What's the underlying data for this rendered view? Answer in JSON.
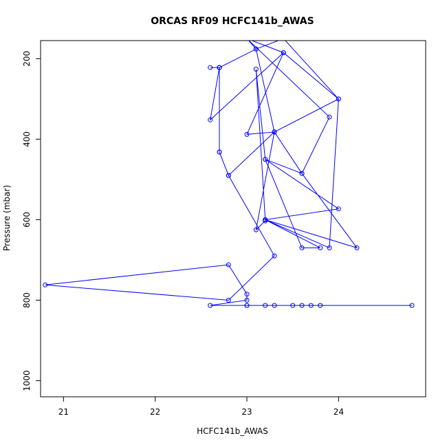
{
  "chart_data": {
    "type": "line",
    "title": "ORCAS RF09 HCFC141b_AWAS",
    "xlabel": "HCFC141b_AWAS",
    "ylabel": "Pressure (mbar)",
    "xlim": [
      20.75,
      24.95
    ],
    "ylim": [
      1040,
      155
    ],
    "y_reversed": true,
    "x_ticks": [
      21,
      22,
      23,
      24
    ],
    "y_ticks": [
      200,
      400,
      600,
      800,
      1000
    ],
    "grid": false,
    "legend": "none",
    "series_color": "#0000ff",
    "x": [
      23.0,
      23.2,
      23.3,
      23.5,
      23.6,
      23.7,
      23.8,
      24.8,
      23.0,
      22.6,
      23.0,
      23.0,
      22.8,
      20.8,
      22.8,
      23.3,
      22.8,
      22.7,
      22.7,
      22.7,
      22.6,
      23.4,
      23.0,
      23.3,
      23.1,
      23.2,
      23.2,
      24.0,
      23.2,
      23.6,
      24.2,
      23.2,
      23.1,
      23.2,
      23.6,
      23.8,
      23.2,
      23.9,
      24.0,
      23.3,
      22.8,
      22.7,
      22.7,
      22.6,
      22.7,
      23.1,
      23.3,
      23.6,
      23.9,
      23.0,
      23.4,
      24.0,
      23.4,
      23.1,
      23.0
    ],
    "y": [
      813,
      813,
      813,
      813,
      813,
      813,
      813,
      813,
      813,
      813,
      800,
      785,
      712,
      762,
      800,
      690,
      490,
      432,
      222,
      222,
      352,
      185,
      388,
      382,
      625,
      603,
      600,
      573,
      450,
      485,
      670,
      600,
      226,
      450,
      670,
      670,
      600,
      670,
      300,
      382,
      490,
      432,
      222,
      222,
      222,
      176,
      382,
      485,
      345,
      150,
      185,
      300,
      150,
      176,
      150
    ]
  }
}
